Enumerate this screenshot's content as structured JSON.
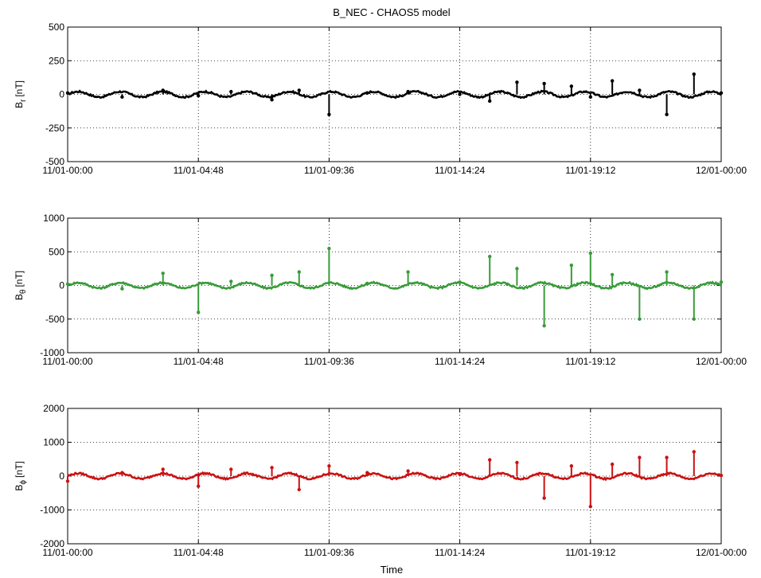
{
  "title": "B_NEC - CHAOS5 model",
  "xlabel": "Time",
  "x_tick_labels": [
    "11/01-00:00",
    "11/01-04:48",
    "11/01-09:36",
    "11/01-14:24",
    "11/01-19:12",
    "12/01-00:00"
  ],
  "chart_data": [
    {
      "type": "scatter",
      "component": "B_r",
      "ylabel_base": "B",
      "ylabel_sub": "r",
      "ylabel_unit": "[nT]",
      "color": "#000000",
      "ylim": [
        -500,
        500
      ],
      "yticks": [
        -500,
        -250,
        0,
        250,
        500
      ],
      "ytick_labels": [
        "-500",
        "-250",
        "0",
        "250",
        "500"
      ],
      "x": [
        "11/01-00:00",
        "11/01-02:00",
        "11/01-03:30",
        "11/01-04:48",
        "11/01-06:00",
        "11/01-07:30",
        "11/01-08:30",
        "11/01-09:36",
        "11/01-11:00",
        "11/01-12:30",
        "11/01-14:24",
        "11/01-15:30",
        "11/01-16:30",
        "11/01-17:30",
        "11/01-18:30",
        "11/01-19:12",
        "11/01-20:00",
        "11/01-21:00",
        "11/01-22:00",
        "11/01-23:00",
        "12/01-00:00"
      ],
      "y": [
        10,
        -20,
        30,
        -10,
        20,
        -40,
        30,
        -150,
        10,
        20,
        0,
        -50,
        90,
        80,
        60,
        -20,
        100,
        30,
        -150,
        150,
        10
      ],
      "grid": true
    },
    {
      "type": "scatter",
      "component": "B_theta",
      "ylabel_base": "B",
      "ylabel_sub": "θ",
      "ylabel_unit": "[nT]",
      "color": "#3a9b3a",
      "ylim": [
        -1000,
        1000
      ],
      "yticks": [
        -1000,
        -500,
        0,
        500,
        1000
      ],
      "ytick_labels": [
        "-1000",
        "-500",
        "0",
        "500",
        "1000"
      ],
      "x": [
        "11/01-00:00",
        "11/01-02:00",
        "11/01-03:30",
        "11/01-04:48",
        "11/01-06:00",
        "11/01-07:30",
        "11/01-08:30",
        "11/01-09:36",
        "11/01-11:00",
        "11/01-12:30",
        "11/01-14:24",
        "11/01-15:30",
        "11/01-16:30",
        "11/01-17:30",
        "11/01-18:30",
        "11/01-19:12",
        "11/01-20:00",
        "11/01-21:00",
        "11/01-22:00",
        "11/01-23:00",
        "12/01-00:00"
      ],
      "y": [
        20,
        -50,
        180,
        -400,
        60,
        150,
        200,
        550,
        30,
        200,
        50,
        430,
        250,
        -600,
        300,
        480,
        160,
        -500,
        200,
        -500,
        50
      ],
      "grid": true
    },
    {
      "type": "scatter",
      "component": "B_phi",
      "ylabel_base": "B",
      "ylabel_sub": "ϕ",
      "ylabel_unit": "[nT]",
      "color": "#cc1111",
      "ylim": [
        -2000,
        2000
      ],
      "yticks": [
        -2000,
        -1000,
        0,
        1000,
        2000
      ],
      "ytick_labels": [
        "-2000",
        "-1000",
        "0",
        "1000",
        "2000"
      ],
      "x": [
        "11/01-00:00",
        "11/01-02:00",
        "11/01-03:30",
        "11/01-04:48",
        "11/01-06:00",
        "11/01-07:30",
        "11/01-08:30",
        "11/01-09:36",
        "11/01-11:00",
        "11/01-12:30",
        "11/01-14:24",
        "11/01-15:30",
        "11/01-16:30",
        "11/01-17:30",
        "11/01-18:30",
        "11/01-19:12",
        "11/01-20:00",
        "11/01-21:00",
        "11/01-22:00",
        "11/01-23:00",
        "12/01-00:00"
      ],
      "y": [
        -150,
        100,
        200,
        -300,
        200,
        250,
        -400,
        300,
        100,
        150,
        50,
        480,
        400,
        -650,
        300,
        -900,
        350,
        550,
        550,
        720,
        20
      ],
      "grid": true
    }
  ]
}
